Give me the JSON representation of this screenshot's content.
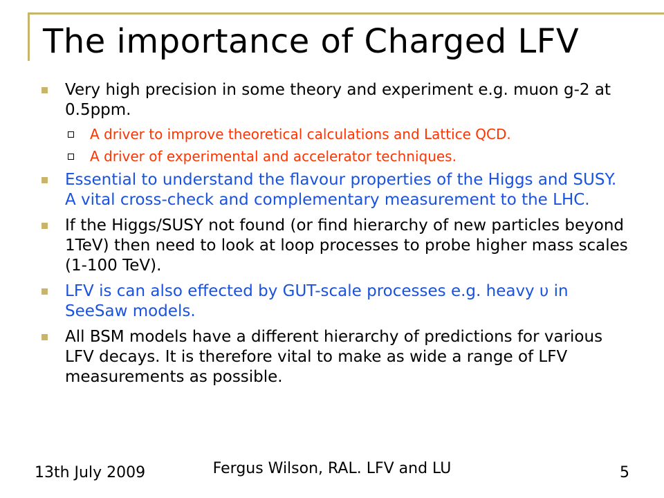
{
  "slide": {
    "title": "The importance of Charged LFV",
    "bullets": [
      {
        "text": "Very high precision in some theory and experiment e.g. muon g-2 at 0.5ppm."
      },
      {
        "text": "A driver to improve theoretical calculations and Lattice QCD."
      },
      {
        "text": "A driver of experimental and accelerator techniques."
      },
      {
        "text": "Essential to understand the flavour properties of the Higgs and SUSY. A vital cross-check and complementary measurement to the LHC."
      },
      {
        "text": "If the Higgs/SUSY not found (or find hierarchy of new particles beyond 1TeV) then need to look at loop processes to probe higher mass scales (1-100 TeV)."
      },
      {
        "text": "LFV is can also effected by GUT-scale processes e.g. heavy υ in SeeSaw models."
      },
      {
        "text": "All BSM models have a different hierarchy of predictions for various  LFV decays. It is therefore vital to make as wide a range of LFV  measurements as possible."
      }
    ]
  },
  "footer": {
    "date": "13th July 2009",
    "center": "Fergus Wilson, RAL. LFV and LU",
    "page": "5"
  },
  "colors": {
    "accent_gold": "#c8b46a",
    "sub_bullet_red": "#ff3300",
    "highlight_blue": "#1a52e0",
    "text_black": "#000000"
  }
}
